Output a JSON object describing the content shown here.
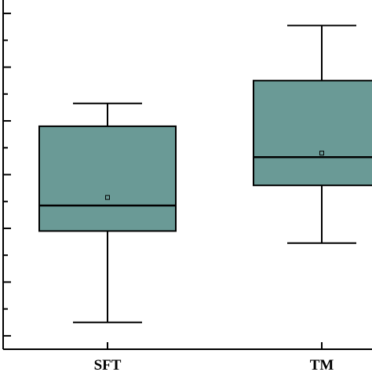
{
  "chart_data": {
    "type": "box",
    "categories": [
      "SFT",
      "TM"
    ],
    "series": [
      {
        "values": [
          {
            "category": "SFT",
            "whisker_low": 0.05,
            "q1": 0.39,
            "median": 0.485,
            "mean": 0.515,
            "q3": 0.78,
            "whisker_high": 0.865
          },
          {
            "category": "TM",
            "whisker_low": 0.345,
            "q1": 0.56,
            "median": 0.665,
            "mean": 0.68,
            "q3": 0.95,
            "whisker_high": 1.155
          }
        ]
      }
    ],
    "ylim": [
      -0.05,
      1.25
    ],
    "y_major_ticks": [
      0.0,
      0.2,
      0.4,
      0.6,
      0.8,
      1.0,
      1.2
    ],
    "y_minor_ticks": [
      -0.1,
      0.1,
      0.3,
      0.5,
      0.7,
      0.9,
      1.1
    ],
    "box_color": "#6a9a96",
    "line_color": "#000000",
    "grid": false,
    "title": "",
    "xlabel": "",
    "ylabel": ""
  }
}
